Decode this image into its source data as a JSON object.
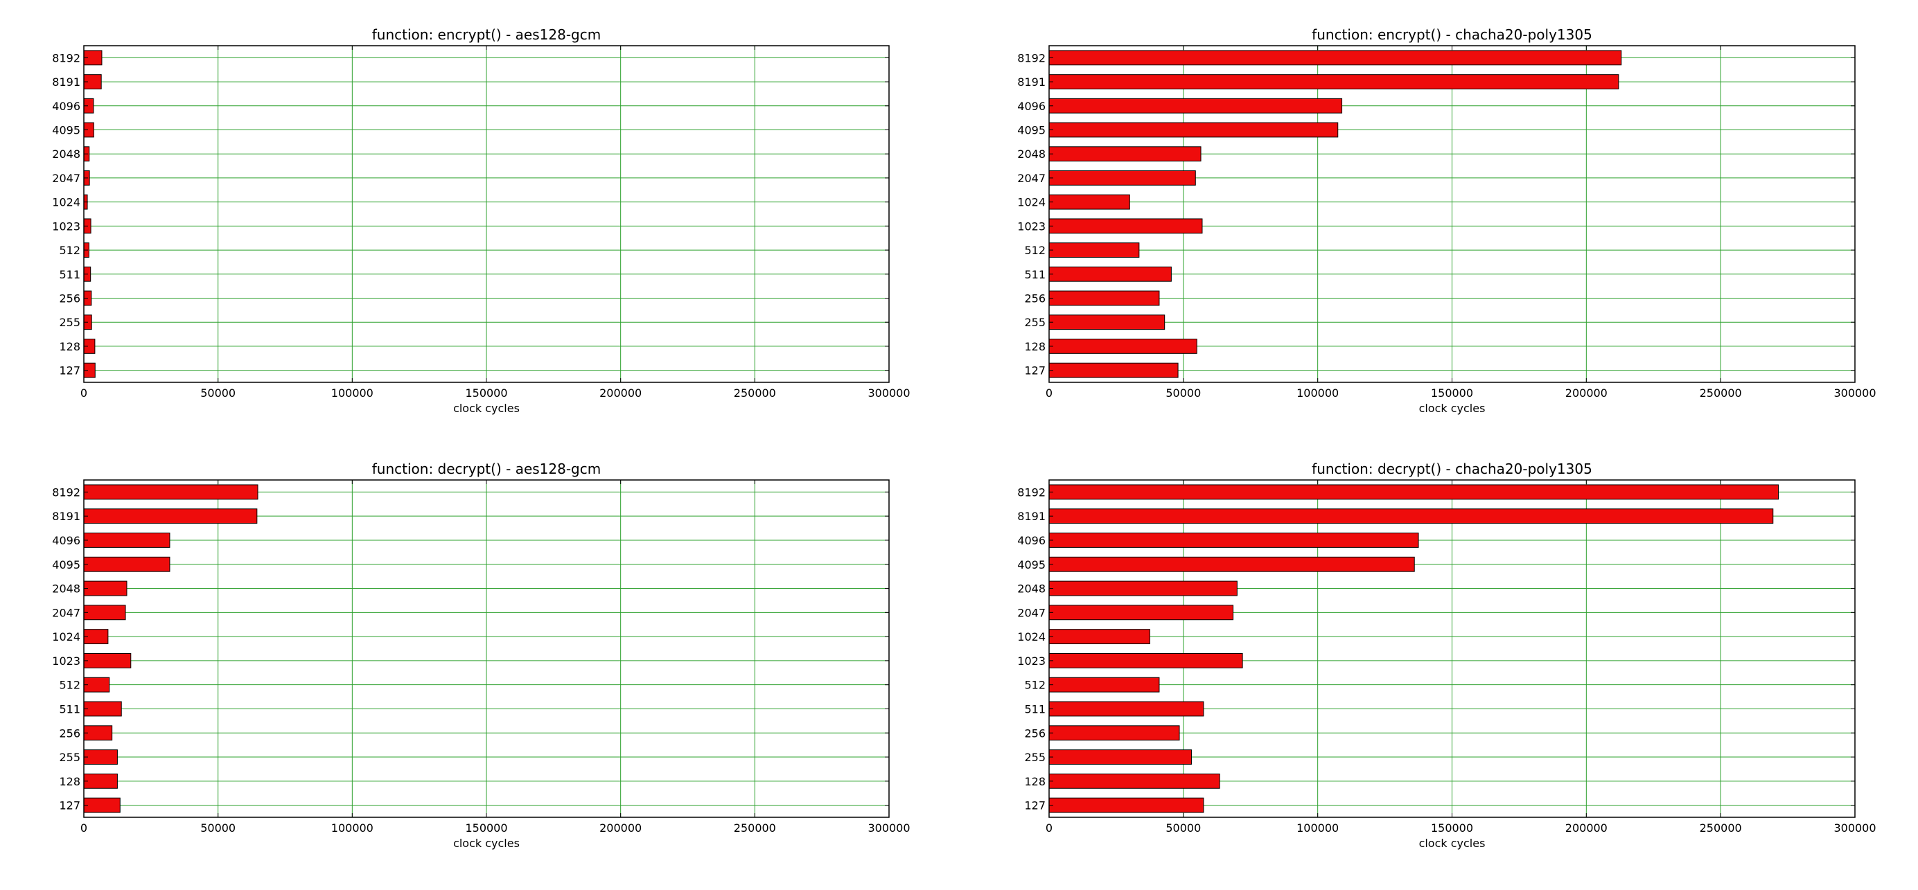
{
  "colors": {
    "bar_fill": "#ee0c0c",
    "bar_edge": "#000000",
    "grid": "#2ca02c",
    "axes": "#000000",
    "background": "#ffffff"
  },
  "chart_data": [
    {
      "type": "bar",
      "orientation": "horizontal",
      "title": "function: encrypt() - aes128-gcm",
      "xlabel": "clock cycles",
      "ylabel": "",
      "categories": [
        "127",
        "128",
        "255",
        "256",
        "511",
        "512",
        "1023",
        "1024",
        "2047",
        "2048",
        "4095",
        "4096",
        "8191",
        "8192"
      ],
      "values": [
        4200,
        4100,
        2900,
        2800,
        2500,
        1900,
        2600,
        1300,
        2100,
        2000,
        3700,
        3600,
        6500,
        6700
      ],
      "xlim": [
        0,
        300000
      ],
      "xticks": [
        0,
        50000,
        100000,
        150000,
        200000,
        250000,
        300000
      ],
      "grid": true
    },
    {
      "type": "bar",
      "orientation": "horizontal",
      "title": "function: encrypt() - chacha20-poly1305",
      "xlabel": "clock cycles",
      "ylabel": "",
      "categories": [
        "127",
        "128",
        "255",
        "256",
        "511",
        "512",
        "1023",
        "1024",
        "2047",
        "2048",
        "4095",
        "4096",
        "8191",
        "8192"
      ],
      "values": [
        48000,
        55000,
        43000,
        41000,
        45500,
        33500,
        57000,
        30000,
        54500,
        56500,
        107500,
        109000,
        212000,
        213000
      ],
      "xlim": [
        0,
        300000
      ],
      "xticks": [
        0,
        50000,
        100000,
        150000,
        200000,
        250000,
        300000
      ],
      "grid": true
    },
    {
      "type": "bar",
      "orientation": "horizontal",
      "title": "function: decrypt() - aes128-gcm",
      "xlabel": "clock cycles",
      "ylabel": "",
      "categories": [
        "127",
        "128",
        "255",
        "256",
        "511",
        "512",
        "1023",
        "1024",
        "2047",
        "2048",
        "4095",
        "4096",
        "8191",
        "8192"
      ],
      "values": [
        13500,
        12500,
        12500,
        10500,
        14000,
        9500,
        17500,
        9000,
        15500,
        16000,
        32000,
        32000,
        64500,
        64800
      ],
      "xlim": [
        0,
        300000
      ],
      "xticks": [
        0,
        50000,
        100000,
        150000,
        200000,
        250000,
        300000
      ],
      "grid": true
    },
    {
      "type": "bar",
      "orientation": "horizontal",
      "title": "function: decrypt() - chacha20-poly1305",
      "xlabel": "clock cycles",
      "ylabel": "",
      "categories": [
        "127",
        "128",
        "255",
        "256",
        "511",
        "512",
        "1023",
        "1024",
        "2047",
        "2048",
        "4095",
        "4096",
        "8191",
        "8192"
      ],
      "values": [
        57500,
        63500,
        53000,
        48500,
        57500,
        41000,
        72000,
        37500,
        68500,
        70000,
        136000,
        137500,
        269500,
        271500
      ],
      "xlim": [
        0,
        300000
      ],
      "xticks": [
        0,
        50000,
        100000,
        150000,
        200000,
        250000,
        300000
      ],
      "grid": true
    }
  ]
}
